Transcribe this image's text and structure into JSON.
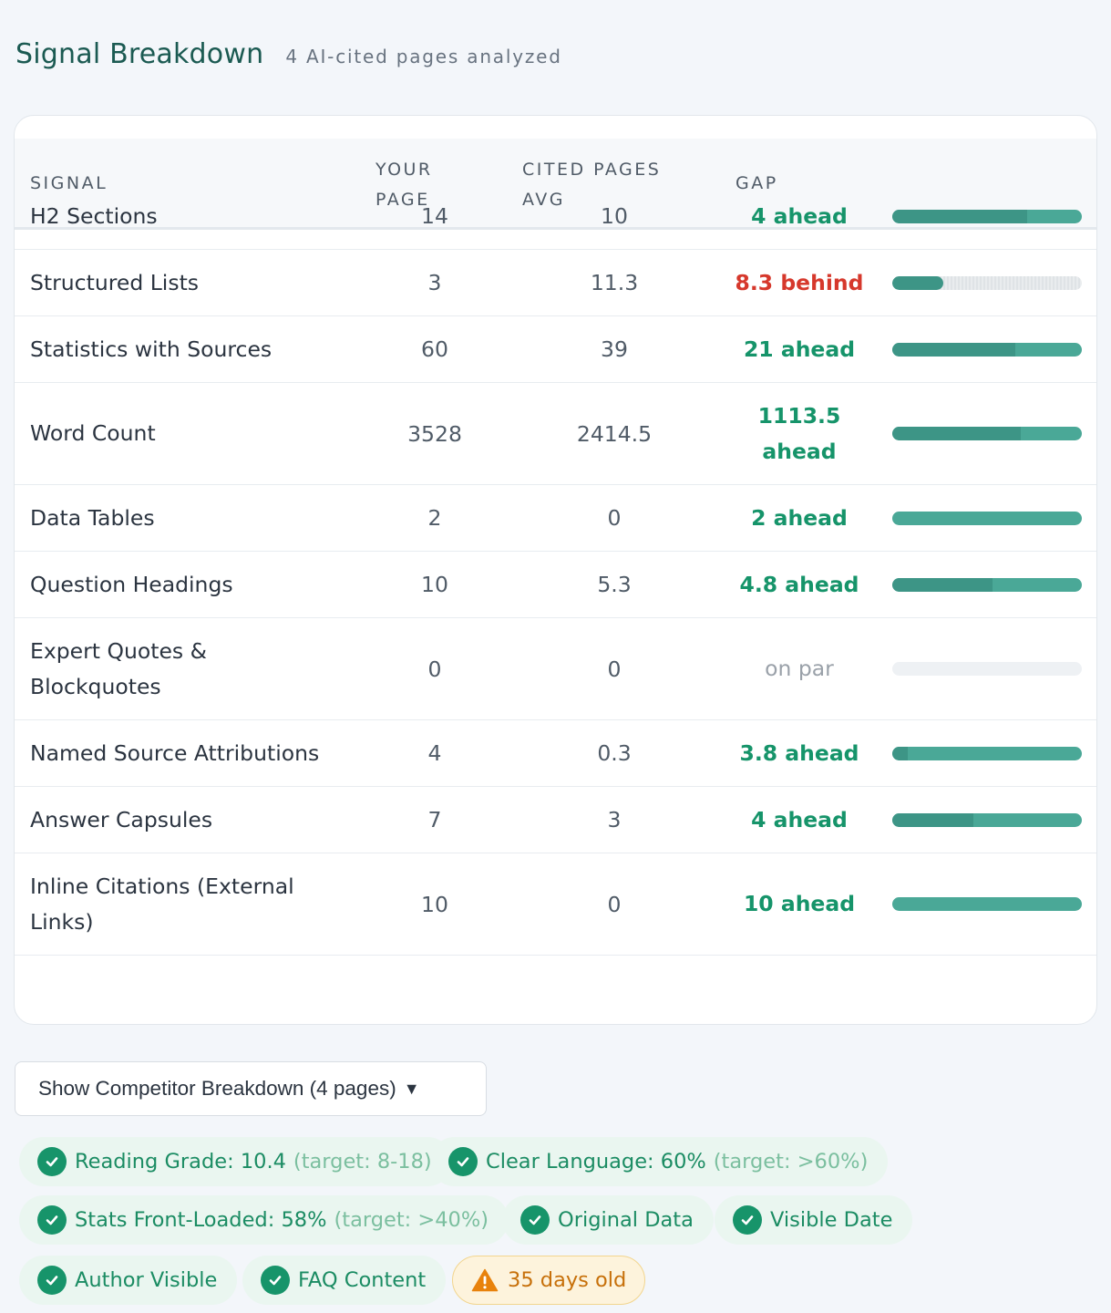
{
  "header": {
    "title": "Signal Breakdown",
    "subtitle": "4 AI-cited pages analyzed"
  },
  "table": {
    "columns": {
      "signal": "SIGNAL",
      "yours_l1": "YOUR",
      "yours_l2": "PAGE",
      "avg_l1": "CITED PAGES",
      "avg_l2": "AVG",
      "gap": "GAP"
    },
    "rows": [
      {
        "signal": "H2 Sections",
        "yours": "14",
        "avg": "10",
        "gap": "4 ahead",
        "status": "ahead",
        "bar_level": 0.71
      },
      {
        "signal": "Structured Lists",
        "yours": "3",
        "avg": "11.3",
        "gap": "8.3 behind",
        "status": "behind",
        "bar_level": 0.27
      },
      {
        "signal": "Statistics with Sources",
        "yours": "60",
        "avg": "39",
        "gap": "21 ahead",
        "status": "ahead",
        "bar_level": 0.65
      },
      {
        "signal": "Word Count",
        "yours": "3528",
        "avg": "2414.5",
        "gap": "1113.5 ahead",
        "status": "ahead",
        "bar_level": 0.68
      },
      {
        "signal": "Data Tables",
        "yours": "2",
        "avg": "0",
        "gap": "2 ahead",
        "status": "ahead",
        "bar_level": 0.0
      },
      {
        "signal": "Question Headings",
        "yours": "10",
        "avg": "5.3",
        "gap": "4.8 ahead",
        "status": "ahead",
        "bar_level": 0.53
      },
      {
        "signal": "Expert Quotes & Blockquotes",
        "yours": "0",
        "avg": "0",
        "gap": "on par",
        "status": "par",
        "bar_level": 0.0
      },
      {
        "signal": "Named Source Attributions",
        "yours": "4",
        "avg": "0.3",
        "gap": "3.8 ahead",
        "status": "ahead",
        "bar_level": 0.08
      },
      {
        "signal": "Answer Capsules",
        "yours": "7",
        "avg": "3",
        "gap": "4 ahead",
        "status": "ahead",
        "bar_level": 0.43
      },
      {
        "signal": "Inline Citations (External Links)",
        "yours": "10",
        "avg": "0",
        "gap": "10 ahead",
        "status": "ahead",
        "bar_level": 0.0
      }
    ]
  },
  "toggle": {
    "label": "Show Competitor Breakdown (4 pages)",
    "caret": "▼"
  },
  "checks": [
    {
      "label": "Reading Grade: 10.4",
      "target": "(target: 8-18)",
      "kind": "pass"
    },
    {
      "label": "Clear Language: 60%",
      "target": "(target: >60%)",
      "kind": "pass"
    },
    {
      "label": "Stats Front-Loaded: 58%",
      "target": "(target: >40%)",
      "kind": "pass"
    },
    {
      "label": "Original Data",
      "target": "",
      "kind": "pass"
    },
    {
      "label": "Visible Date",
      "target": "",
      "kind": "pass"
    },
    {
      "label": "Author Visible",
      "target": "",
      "kind": "pass"
    },
    {
      "label": "FAQ Content",
      "target": "",
      "kind": "pass"
    },
    {
      "label": "35 days old",
      "target": "",
      "kind": "warn"
    }
  ],
  "colors": {
    "ahead": "#16946a",
    "behind": "#d6382c",
    "par": "#9aa1a9",
    "bar": "#4aa897",
    "warn": "#c7700a"
  }
}
